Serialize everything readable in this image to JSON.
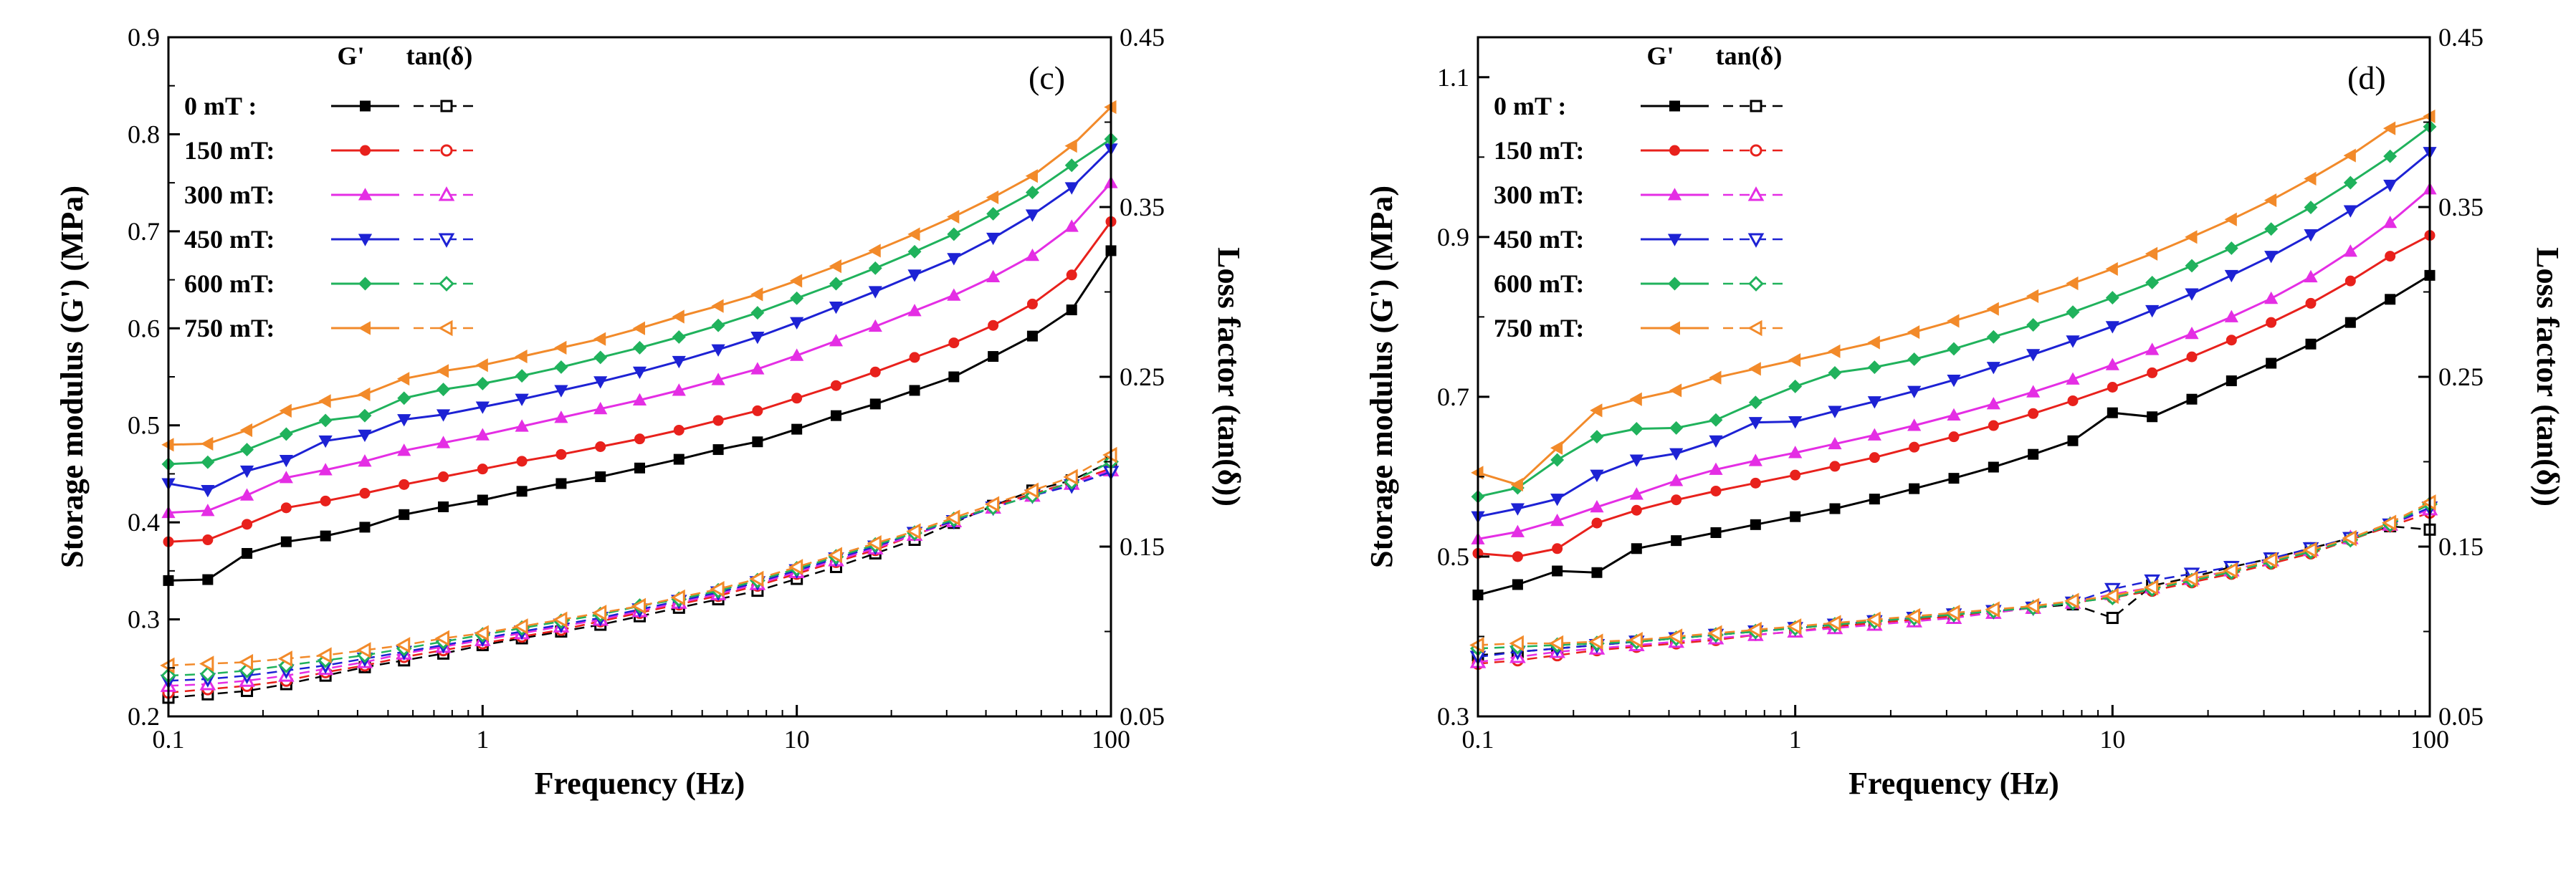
{
  "chart_data": [
    {
      "type": "line",
      "panel_label": "(c)",
      "xlabel": "Frequency (Hz)",
      "ylabel": "Storage modulus (G') (MPa)",
      "y2label": "Loss factor (tan(δ))",
      "xscale": "log",
      "xlim": [
        0.1,
        100
      ],
      "ylim": [
        0.2,
        0.9
      ],
      "y2lim": [
        0.05,
        0.45
      ],
      "xticks": [
        "0.1",
        "1",
        "10",
        "100"
      ],
      "yticks": [
        "0.2",
        "0.3",
        "0.4",
        "0.5",
        "0.6",
        "0.7",
        "0.8",
        "0.9"
      ],
      "y2ticks": [
        "0.05",
        "0.15",
        "0.25",
        "0.35",
        "0.45"
      ],
      "legend_header_g": "G'",
      "legend_header_tan": "tan(δ)",
      "x": [
        0.1,
        0.1334,
        0.1778,
        0.2371,
        0.3162,
        0.4217,
        0.5623,
        0.7499,
        1.0,
        1.3335,
        1.7783,
        2.3714,
        3.1623,
        4.217,
        5.6234,
        7.4989,
        10.0,
        13.3352,
        17.7828,
        23.7137,
        31.6228,
        42.1697,
        56.2341,
        74.9894,
        100.0
      ],
      "series": [
        {
          "name": "0 mT",
          "legend_label": "0 mT    :",
          "color": "#000000",
          "marker": "square",
          "g": [
            0.34,
            0.341,
            0.368,
            0.38,
            0.386,
            0.395,
            0.408,
            0.416,
            0.423,
            0.432,
            0.44,
            0.447,
            0.456,
            0.465,
            0.475,
            0.483,
            0.496,
            0.51,
            0.522,
            0.536,
            0.55,
            0.571,
            0.592,
            0.619,
            0.68
          ],
          "tan": [
            0.061,
            0.063,
            0.065,
            0.069,
            0.074,
            0.079,
            0.083,
            0.087,
            0.092,
            0.096,
            0.1,
            0.104,
            0.109,
            0.114,
            0.119,
            0.124,
            0.131,
            0.138,
            0.146,
            0.154,
            0.164,
            0.174,
            0.183,
            0.189,
            0.2
          ]
        },
        {
          "name": "150 mT",
          "legend_label": "150 mT:",
          "color": "#e8211c",
          "marker": "circle",
          "g": [
            0.38,
            0.382,
            0.398,
            0.415,
            0.422,
            0.43,
            0.439,
            0.447,
            0.455,
            0.463,
            0.47,
            0.478,
            0.486,
            0.495,
            0.505,
            0.515,
            0.528,
            0.541,
            0.555,
            0.57,
            0.585,
            0.603,
            0.625,
            0.655,
            0.71
          ],
          "tan": [
            0.064,
            0.066,
            0.068,
            0.071,
            0.076,
            0.08,
            0.085,
            0.089,
            0.093,
            0.097,
            0.101,
            0.106,
            0.111,
            0.116,
            0.121,
            0.127,
            0.134,
            0.141,
            0.148,
            0.157,
            0.165,
            0.174,
            0.181,
            0.188,
            0.196
          ]
        },
        {
          "name": "300 mT",
          "legend_label": "300 mT:",
          "color": "#e42ee4",
          "marker": "triangle-up",
          "g": [
            0.41,
            0.412,
            0.428,
            0.446,
            0.454,
            0.463,
            0.474,
            0.482,
            0.49,
            0.499,
            0.508,
            0.517,
            0.526,
            0.536,
            0.547,
            0.558,
            0.572,
            0.587,
            0.602,
            0.618,
            0.634,
            0.653,
            0.675,
            0.705,
            0.75
          ],
          "tan": [
            0.068,
            0.069,
            0.071,
            0.074,
            0.078,
            0.082,
            0.087,
            0.091,
            0.095,
            0.099,
            0.103,
            0.107,
            0.112,
            0.117,
            0.122,
            0.128,
            0.135,
            0.142,
            0.149,
            0.157,
            0.165,
            0.173,
            0.18,
            0.187,
            0.195
          ]
        },
        {
          "name": "450 mT",
          "legend_label": "450 mT:",
          "color": "#1d22d4",
          "marker": "triangle-down",
          "g": [
            0.44,
            0.433,
            0.453,
            0.464,
            0.484,
            0.49,
            0.506,
            0.511,
            0.519,
            0.527,
            0.536,
            0.545,
            0.555,
            0.566,
            0.578,
            0.591,
            0.606,
            0.622,
            0.638,
            0.655,
            0.672,
            0.693,
            0.717,
            0.745,
            0.785
          ],
          "tan": [
            0.071,
            0.072,
            0.074,
            0.077,
            0.08,
            0.084,
            0.088,
            0.092,
            0.096,
            0.1,
            0.104,
            0.108,
            0.113,
            0.118,
            0.123,
            0.129,
            0.136,
            0.143,
            0.15,
            0.158,
            0.165,
            0.173,
            0.18,
            0.186,
            0.194
          ]
        },
        {
          "name": "600 mT",
          "legend_label": "600 mT:",
          "color": "#20b25c",
          "marker": "diamond",
          "g": [
            0.46,
            0.462,
            0.475,
            0.491,
            0.505,
            0.51,
            0.528,
            0.537,
            0.543,
            0.551,
            0.56,
            0.57,
            0.58,
            0.591,
            0.603,
            0.616,
            0.631,
            0.646,
            0.662,
            0.679,
            0.697,
            0.718,
            0.74,
            0.768,
            0.795
          ],
          "tan": [
            0.074,
            0.075,
            0.077,
            0.08,
            0.083,
            0.086,
            0.09,
            0.094,
            0.098,
            0.102,
            0.106,
            0.11,
            0.115,
            0.119,
            0.124,
            0.13,
            0.137,
            0.144,
            0.151,
            0.158,
            0.166,
            0.173,
            0.18,
            0.188,
            0.2
          ]
        },
        {
          "name": "750 mT",
          "legend_label": "750 mT:",
          "color": "#f28a2a",
          "marker": "triangle-left",
          "g": [
            0.48,
            0.481,
            0.495,
            0.515,
            0.525,
            0.532,
            0.548,
            0.556,
            0.562,
            0.571,
            0.58,
            0.589,
            0.6,
            0.612,
            0.623,
            0.635,
            0.649,
            0.664,
            0.68,
            0.697,
            0.715,
            0.735,
            0.757,
            0.788,
            0.828
          ],
          "tan": [
            0.08,
            0.081,
            0.082,
            0.084,
            0.086,
            0.089,
            0.092,
            0.096,
            0.099,
            0.103,
            0.107,
            0.111,
            0.115,
            0.12,
            0.125,
            0.131,
            0.138,
            0.145,
            0.152,
            0.159,
            0.167,
            0.175,
            0.183,
            0.191,
            0.204
          ]
        }
      ]
    },
    {
      "type": "line",
      "panel_label": "(d)",
      "xlabel": "Frequency (Hz)",
      "ylabel": "Storage modulus (G')  (MPa)",
      "y2label": "Loss factor (tan(δ))",
      "xscale": "log",
      "xlim": [
        0.1,
        100
      ],
      "ylim": [
        0.3,
        1.15
      ],
      "y2lim": [
        0.05,
        0.45
      ],
      "xticks": [
        "0.1",
        "1",
        "10",
        "100"
      ],
      "yticks": [
        "0.3",
        "0.5",
        "0.7",
        "0.9",
        "1.1"
      ],
      "y2ticks": [
        "0.05",
        "0.15",
        "0.25",
        "0.35",
        "0.45"
      ],
      "legend_header_g": "G'",
      "legend_header_tan": "tan(δ)",
      "x": [
        0.1,
        0.1334,
        0.1778,
        0.2371,
        0.3162,
        0.4217,
        0.5623,
        0.7499,
        1.0,
        1.3335,
        1.7783,
        2.3714,
        3.1623,
        4.217,
        5.6234,
        7.4989,
        10.0,
        13.3352,
        17.7828,
        23.7137,
        31.6228,
        42.1697,
        56.2341,
        74.9894,
        100.0
      ],
      "series": [
        {
          "name": "0 mT",
          "legend_label": "0 mT    :",
          "color": "#000000",
          "marker": "square",
          "g": [
            0.452,
            0.465,
            0.482,
            0.48,
            0.51,
            0.52,
            0.53,
            0.54,
            0.55,
            0.56,
            0.572,
            0.585,
            0.598,
            0.612,
            0.628,
            0.645,
            0.68,
            0.675,
            0.697,
            0.72,
            0.742,
            0.766,
            0.793,
            0.822,
            0.852
          ],
          "tan": [
            0.086,
            0.088,
            0.09,
            0.092,
            0.094,
            0.096,
            0.098,
            0.1,
            0.102,
            0.104,
            0.106,
            0.108,
            0.11,
            0.112,
            0.114,
            0.116,
            0.108,
            0.127,
            0.132,
            0.138,
            0.143,
            0.149,
            0.155,
            0.162,
            0.16
          ]
        },
        {
          "name": "150 mT",
          "legend_label": "150 mT:",
          "color": "#e8211c",
          "marker": "circle",
          "g": [
            0.504,
            0.5,
            0.51,
            0.542,
            0.558,
            0.571,
            0.582,
            0.592,
            0.602,
            0.613,
            0.624,
            0.637,
            0.65,
            0.664,
            0.679,
            0.695,
            0.712,
            0.73,
            0.75,
            0.771,
            0.793,
            0.817,
            0.845,
            0.876,
            0.902
          ],
          "tan": [
            0.081,
            0.083,
            0.086,
            0.089,
            0.091,
            0.093,
            0.095,
            0.098,
            0.1,
            0.103,
            0.105,
            0.107,
            0.109,
            0.111,
            0.114,
            0.117,
            0.12,
            0.124,
            0.129,
            0.134,
            0.14,
            0.146,
            0.154,
            0.162,
            0.17
          ]
        },
        {
          "name": "300 mT",
          "legend_label": "300 mT:",
          "color": "#e42ee4",
          "marker": "triangle-up",
          "g": [
            0.522,
            0.531,
            0.545,
            0.562,
            0.578,
            0.595,
            0.609,
            0.62,
            0.63,
            0.641,
            0.652,
            0.664,
            0.677,
            0.691,
            0.706,
            0.722,
            0.74,
            0.759,
            0.779,
            0.8,
            0.823,
            0.85,
            0.882,
            0.918,
            0.96
          ],
          "tan": [
            0.082,
            0.085,
            0.088,
            0.09,
            0.092,
            0.094,
            0.096,
            0.098,
            0.1,
            0.102,
            0.104,
            0.106,
            0.108,
            0.111,
            0.114,
            0.117,
            0.122,
            0.126,
            0.131,
            0.136,
            0.142,
            0.148,
            0.155,
            0.163,
            0.172
          ]
        },
        {
          "name": "450 mT",
          "legend_label": "450 mT:",
          "color": "#1d22d4",
          "marker": "triangle-down",
          "g": [
            0.55,
            0.56,
            0.572,
            0.602,
            0.621,
            0.629,
            0.645,
            0.668,
            0.669,
            0.682,
            0.694,
            0.707,
            0.721,
            0.737,
            0.753,
            0.77,
            0.788,
            0.808,
            0.829,
            0.852,
            0.876,
            0.903,
            0.933,
            0.965,
            1.006
          ],
          "tan": [
            0.085,
            0.088,
            0.09,
            0.092,
            0.094,
            0.096,
            0.098,
            0.1,
            0.102,
            0.104,
            0.106,
            0.108,
            0.11,
            0.112,
            0.114,
            0.117,
            0.125,
            0.13,
            0.134,
            0.138,
            0.143,
            0.149,
            0.155,
            0.163,
            0.173
          ]
        },
        {
          "name": "600 mT",
          "legend_label": "600 mT:",
          "color": "#20b25c",
          "marker": "diamond",
          "g": [
            0.575,
            0.586,
            0.621,
            0.65,
            0.66,
            0.661,
            0.671,
            0.693,
            0.713,
            0.73,
            0.737,
            0.747,
            0.76,
            0.775,
            0.79,
            0.806,
            0.824,
            0.843,
            0.864,
            0.886,
            0.91,
            0.937,
            0.968,
            1.001,
            1.038
          ],
          "tan": [
            0.09,
            0.091,
            0.092,
            0.093,
            0.094,
            0.096,
            0.098,
            0.1,
            0.102,
            0.104,
            0.106,
            0.108,
            0.11,
            0.112,
            0.114,
            0.117,
            0.12,
            0.125,
            0.13,
            0.135,
            0.141,
            0.147,
            0.154,
            0.163,
            0.175
          ]
        },
        {
          "name": "750 mT",
          "legend_label": "750 mT:",
          "color": "#f28a2a",
          "marker": "triangle-left",
          "g": [
            0.605,
            0.59,
            0.636,
            0.683,
            0.697,
            0.708,
            0.724,
            0.735,
            0.746,
            0.757,
            0.768,
            0.781,
            0.795,
            0.81,
            0.826,
            0.842,
            0.86,
            0.879,
            0.9,
            0.922,
            0.946,
            0.973,
            1.002,
            1.036,
            1.051
          ],
          "tan": [
            0.092,
            0.093,
            0.093,
            0.094,
            0.095,
            0.097,
            0.099,
            0.101,
            0.103,
            0.105,
            0.107,
            0.109,
            0.111,
            0.113,
            0.115,
            0.118,
            0.121,
            0.126,
            0.131,
            0.136,
            0.142,
            0.148,
            0.155,
            0.164,
            0.176
          ]
        }
      ]
    }
  ]
}
